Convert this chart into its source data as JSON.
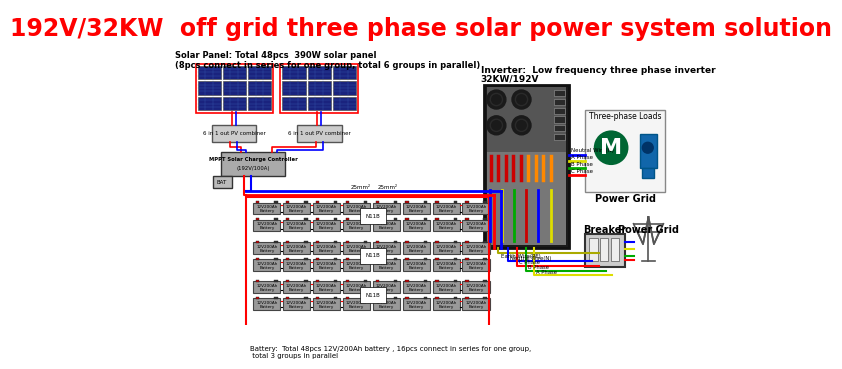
{
  "title": "192V/32KW  off grid three phase solar power system solution",
  "title_color": "#ff0000",
  "title_fontsize": 17,
  "solar_panel_text": "Solar Panel: Total 48pcs  390W solar panel\n(8pcs connect in series for one group, total 6 groups in parallel)",
  "inverter_text_line1": "Inverter:  Low frequency three phase inverter",
  "inverter_text_line2": "32KW/192V",
  "battery_text": "Battery:  Total 48pcs 12V/200Ah battery , 16pcs connect in series for one group,\n total 3 groups in parallel",
  "neutral_wire_color": "#0000ff",
  "a_phase_color": "#dddd00",
  "b_phase_color": "#00aa00",
  "c_phase_color": "#ff0000",
  "red_wire": "#ff0000",
  "blue_wire": "#0000ff",
  "yellow_green_wire": "#aaaa00",
  "panel_color": "#1a237e",
  "battery_color": "#999999",
  "inverter_body_color": "#1a1a1a",
  "inverter_upper_color": "#555555",
  "inverter_lower_color": "#777777",
  "combiner_color": "#cccccc",
  "mppt_color": "#aaaaaa"
}
